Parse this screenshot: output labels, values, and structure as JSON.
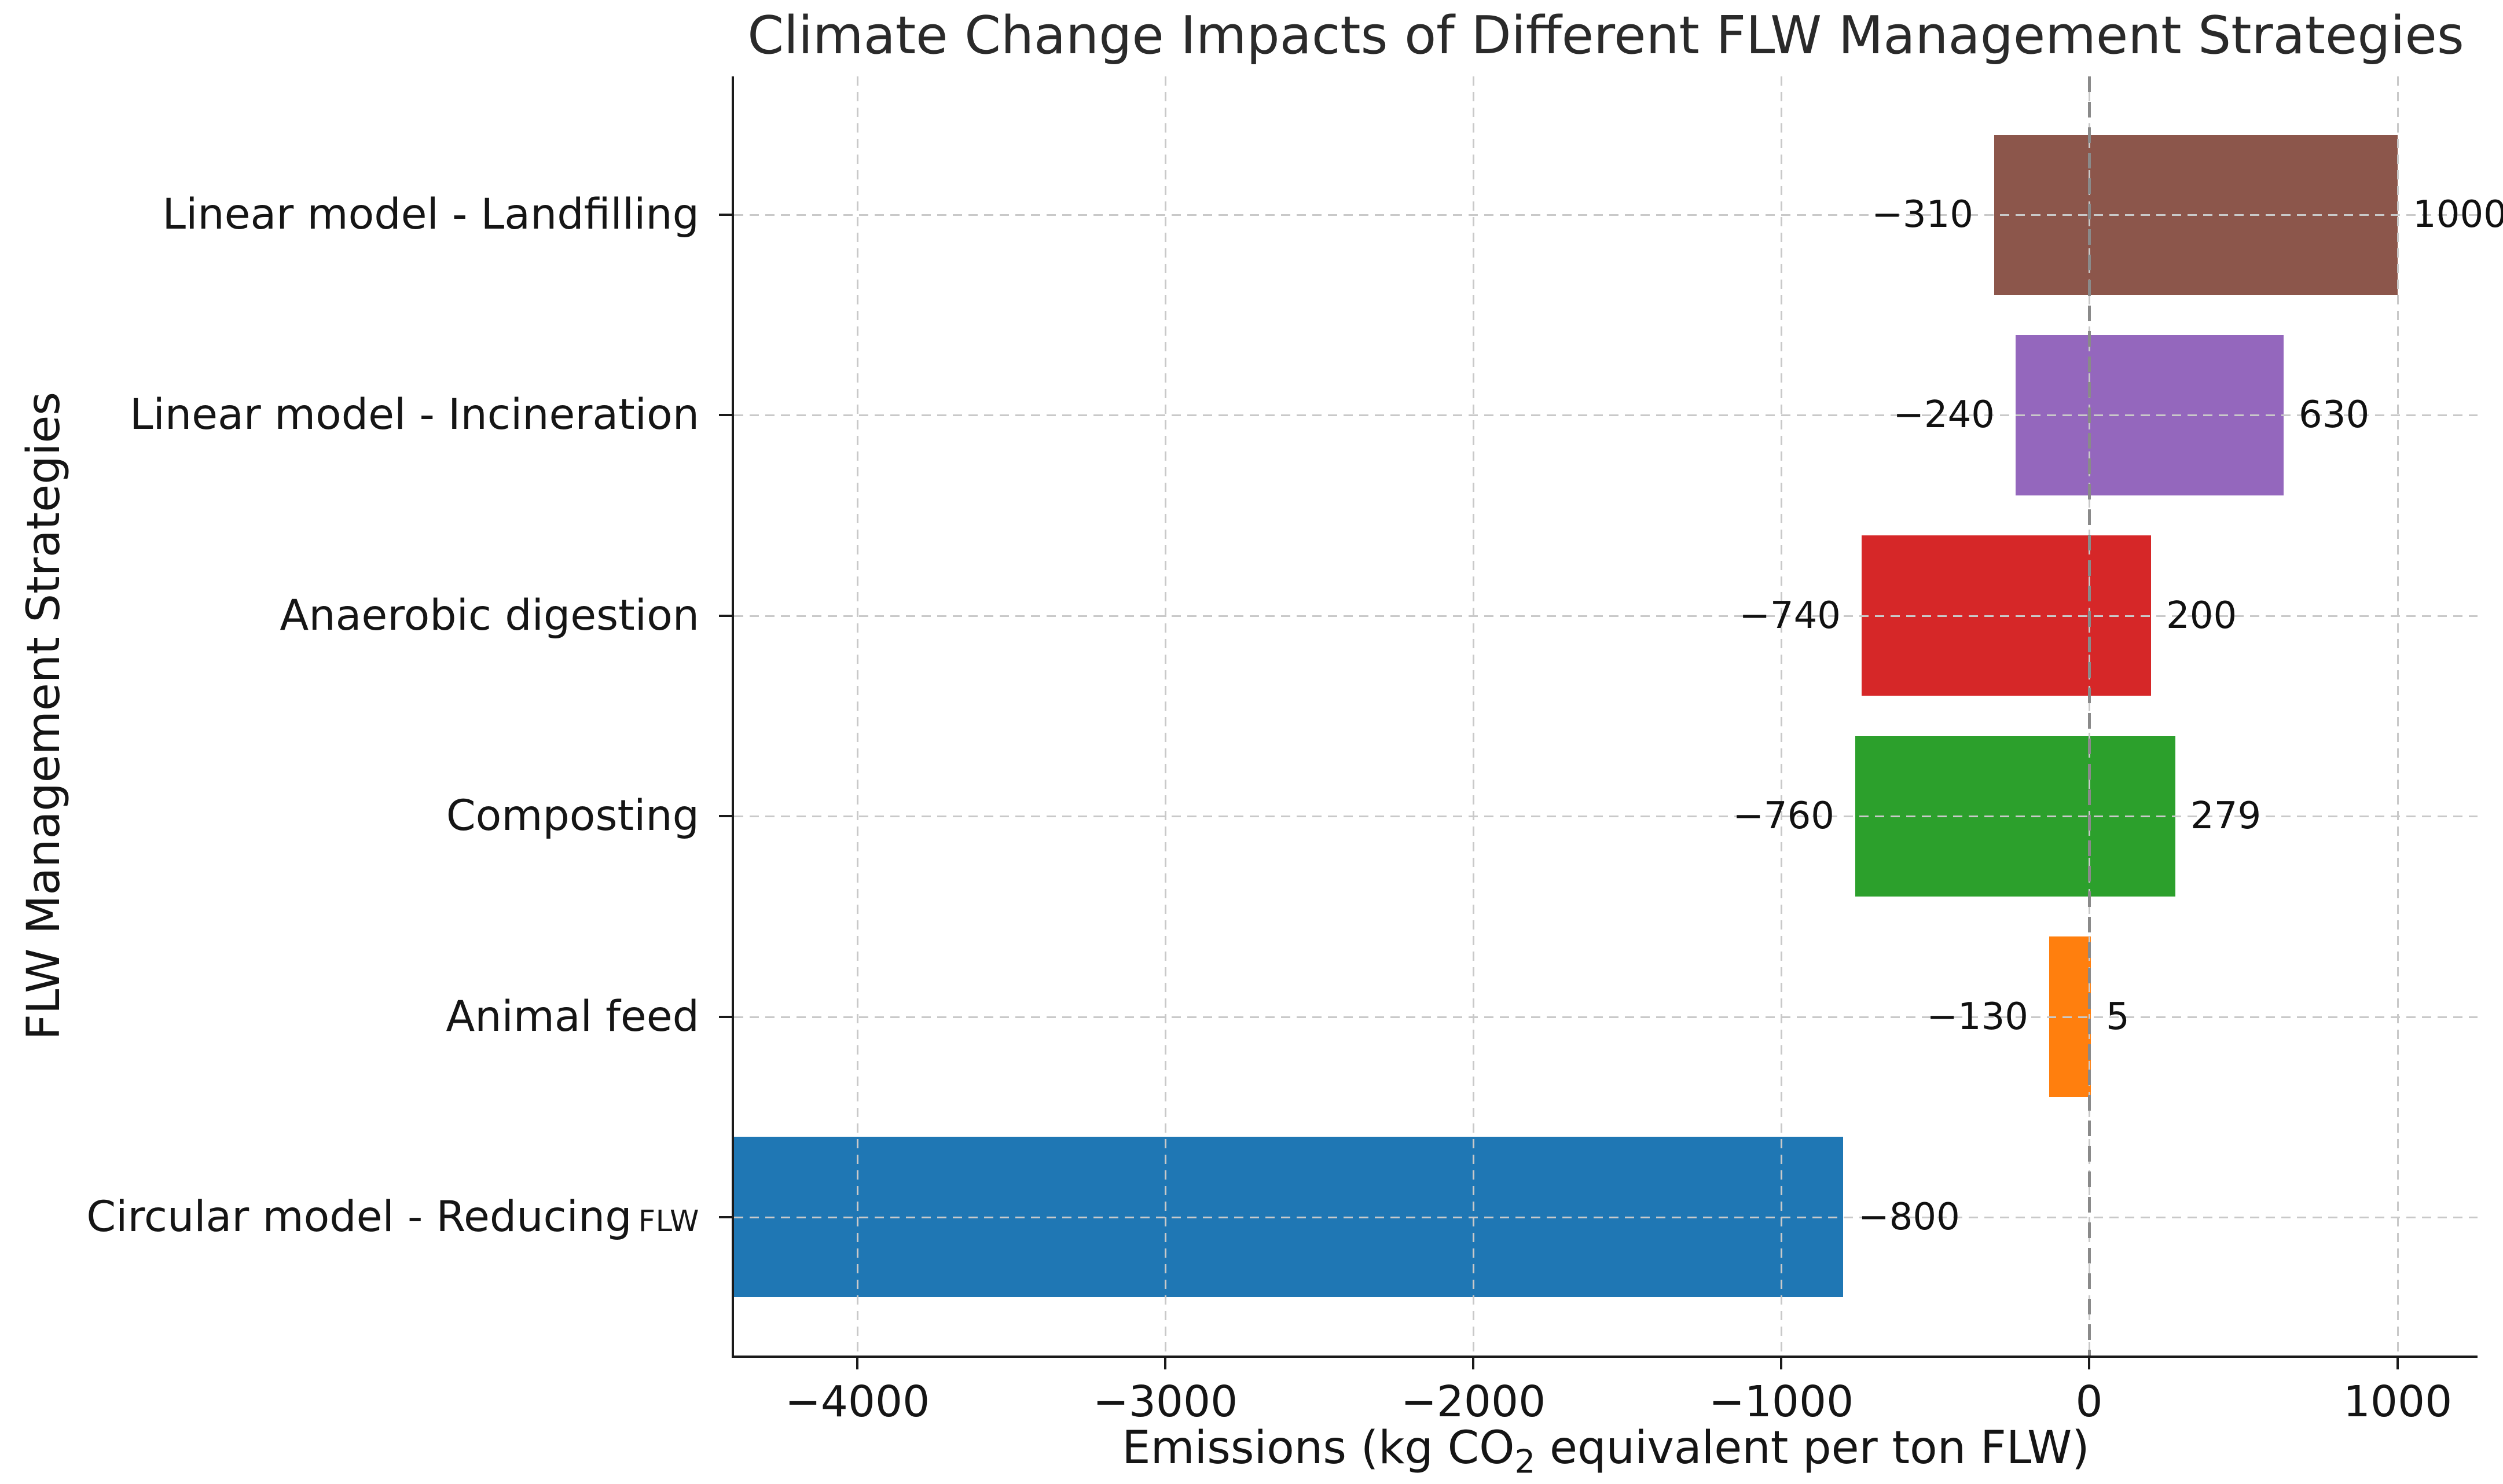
{
  "figure": {
    "title": "Climate Change Impacts of Different FLW Management Strategies",
    "xlabel": {
      "pre": "Emissions (kg CO",
      "sub": "2",
      "post": " equivalent per ton FLW)"
    },
    "ylabel": "FLW Management Strategies"
  },
  "chart_data": {
    "type": "bar",
    "orientation": "horizontal",
    "title": "Climate Change Impacts of Different FLW Management Strategies",
    "xlabel": "Emissions (kg CO2 equivalent per ton FLW)",
    "ylabel": "FLW Management Strategies",
    "xlim": [
      -4400,
      1260
    ],
    "x_tick_values": [
      -4000,
      -3000,
      -2000,
      -1000,
      0,
      1000
    ],
    "x_tick_labels": [
      "−4000",
      "−3000",
      "−2000",
      "−1000",
      "0",
      "1000"
    ],
    "grid": {
      "horizontal": true,
      "vertical": true,
      "style": "dashed",
      "color": "#c9c9c9",
      "drawn_over_bars": true
    },
    "zero_line": {
      "x": 0,
      "style": "dashed",
      "color": "#8a8a8a"
    },
    "legend": null,
    "categories_top_to_bottom": [
      "Linear model - Landfilling",
      "Linear model - Incineration",
      "Anaerobic digestion",
      "Composting",
      "Animal feed",
      "Circular model - Reducing FLW"
    ],
    "bars": [
      {
        "category": "Linear model - Landfilling",
        "category_small_suffix": "",
        "low": -310,
        "high": 1000,
        "low_label": "−310",
        "high_label": "1000",
        "color": "#8c564b",
        "clipped_at_left_edge": false
      },
      {
        "category": "Linear model - Incineration",
        "category_small_suffix": "",
        "low": -240,
        "high": 630,
        "low_label": "−240",
        "high_label": "630",
        "color": "#9467bd",
        "clipped_at_left_edge": false
      },
      {
        "category": "Anaerobic digestion",
        "category_small_suffix": "",
        "low": -740,
        "high": 200,
        "low_label": "−740",
        "high_label": "200",
        "color": "#d62728",
        "clipped_at_left_edge": false
      },
      {
        "category": "Composting",
        "category_small_suffix": "",
        "low": -760,
        "high": 279,
        "low_label": "−760",
        "high_label": "279",
        "color": "#2ca02c",
        "clipped_at_left_edge": false
      },
      {
        "category": "Animal feed",
        "category_small_suffix": "",
        "low": -130,
        "high": 5,
        "low_label": "−130",
        "high_label": "5",
        "color": "#ff7f0e",
        "clipped_at_left_edge": false
      },
      {
        "category": "Circular model - Reducing",
        "category_small_suffix": "FLW",
        "low": -4400,
        "high": -800,
        "low_label": "",
        "high_label": "−800",
        "color": "#1f77b4",
        "clipped_at_left_edge": true
      }
    ]
  }
}
